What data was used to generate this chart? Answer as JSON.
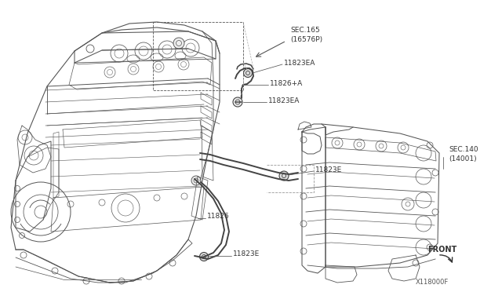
{
  "bg_color": "#ffffff",
  "lc": "#444444",
  "lc_light": "#888888",
  "lc_dashed": "#999999",
  "fs_small": 6.5,
  "fs_label": 6.8,
  "labels": {
    "sec165_line1": "SEC.165",
    "sec165_line2": "(16576P)",
    "l11823EA_1": "11823EA",
    "l11826A": "11826+A",
    "l11823EA_2": "11823EA",
    "l11823E_1": "11823E",
    "l11826": "11826",
    "l11823E_2": "11823E",
    "sec140_line1": "SEC.140",
    "sec140_line2": "(14001)",
    "front": "FRONT",
    "diagram_id": "X118000F"
  }
}
